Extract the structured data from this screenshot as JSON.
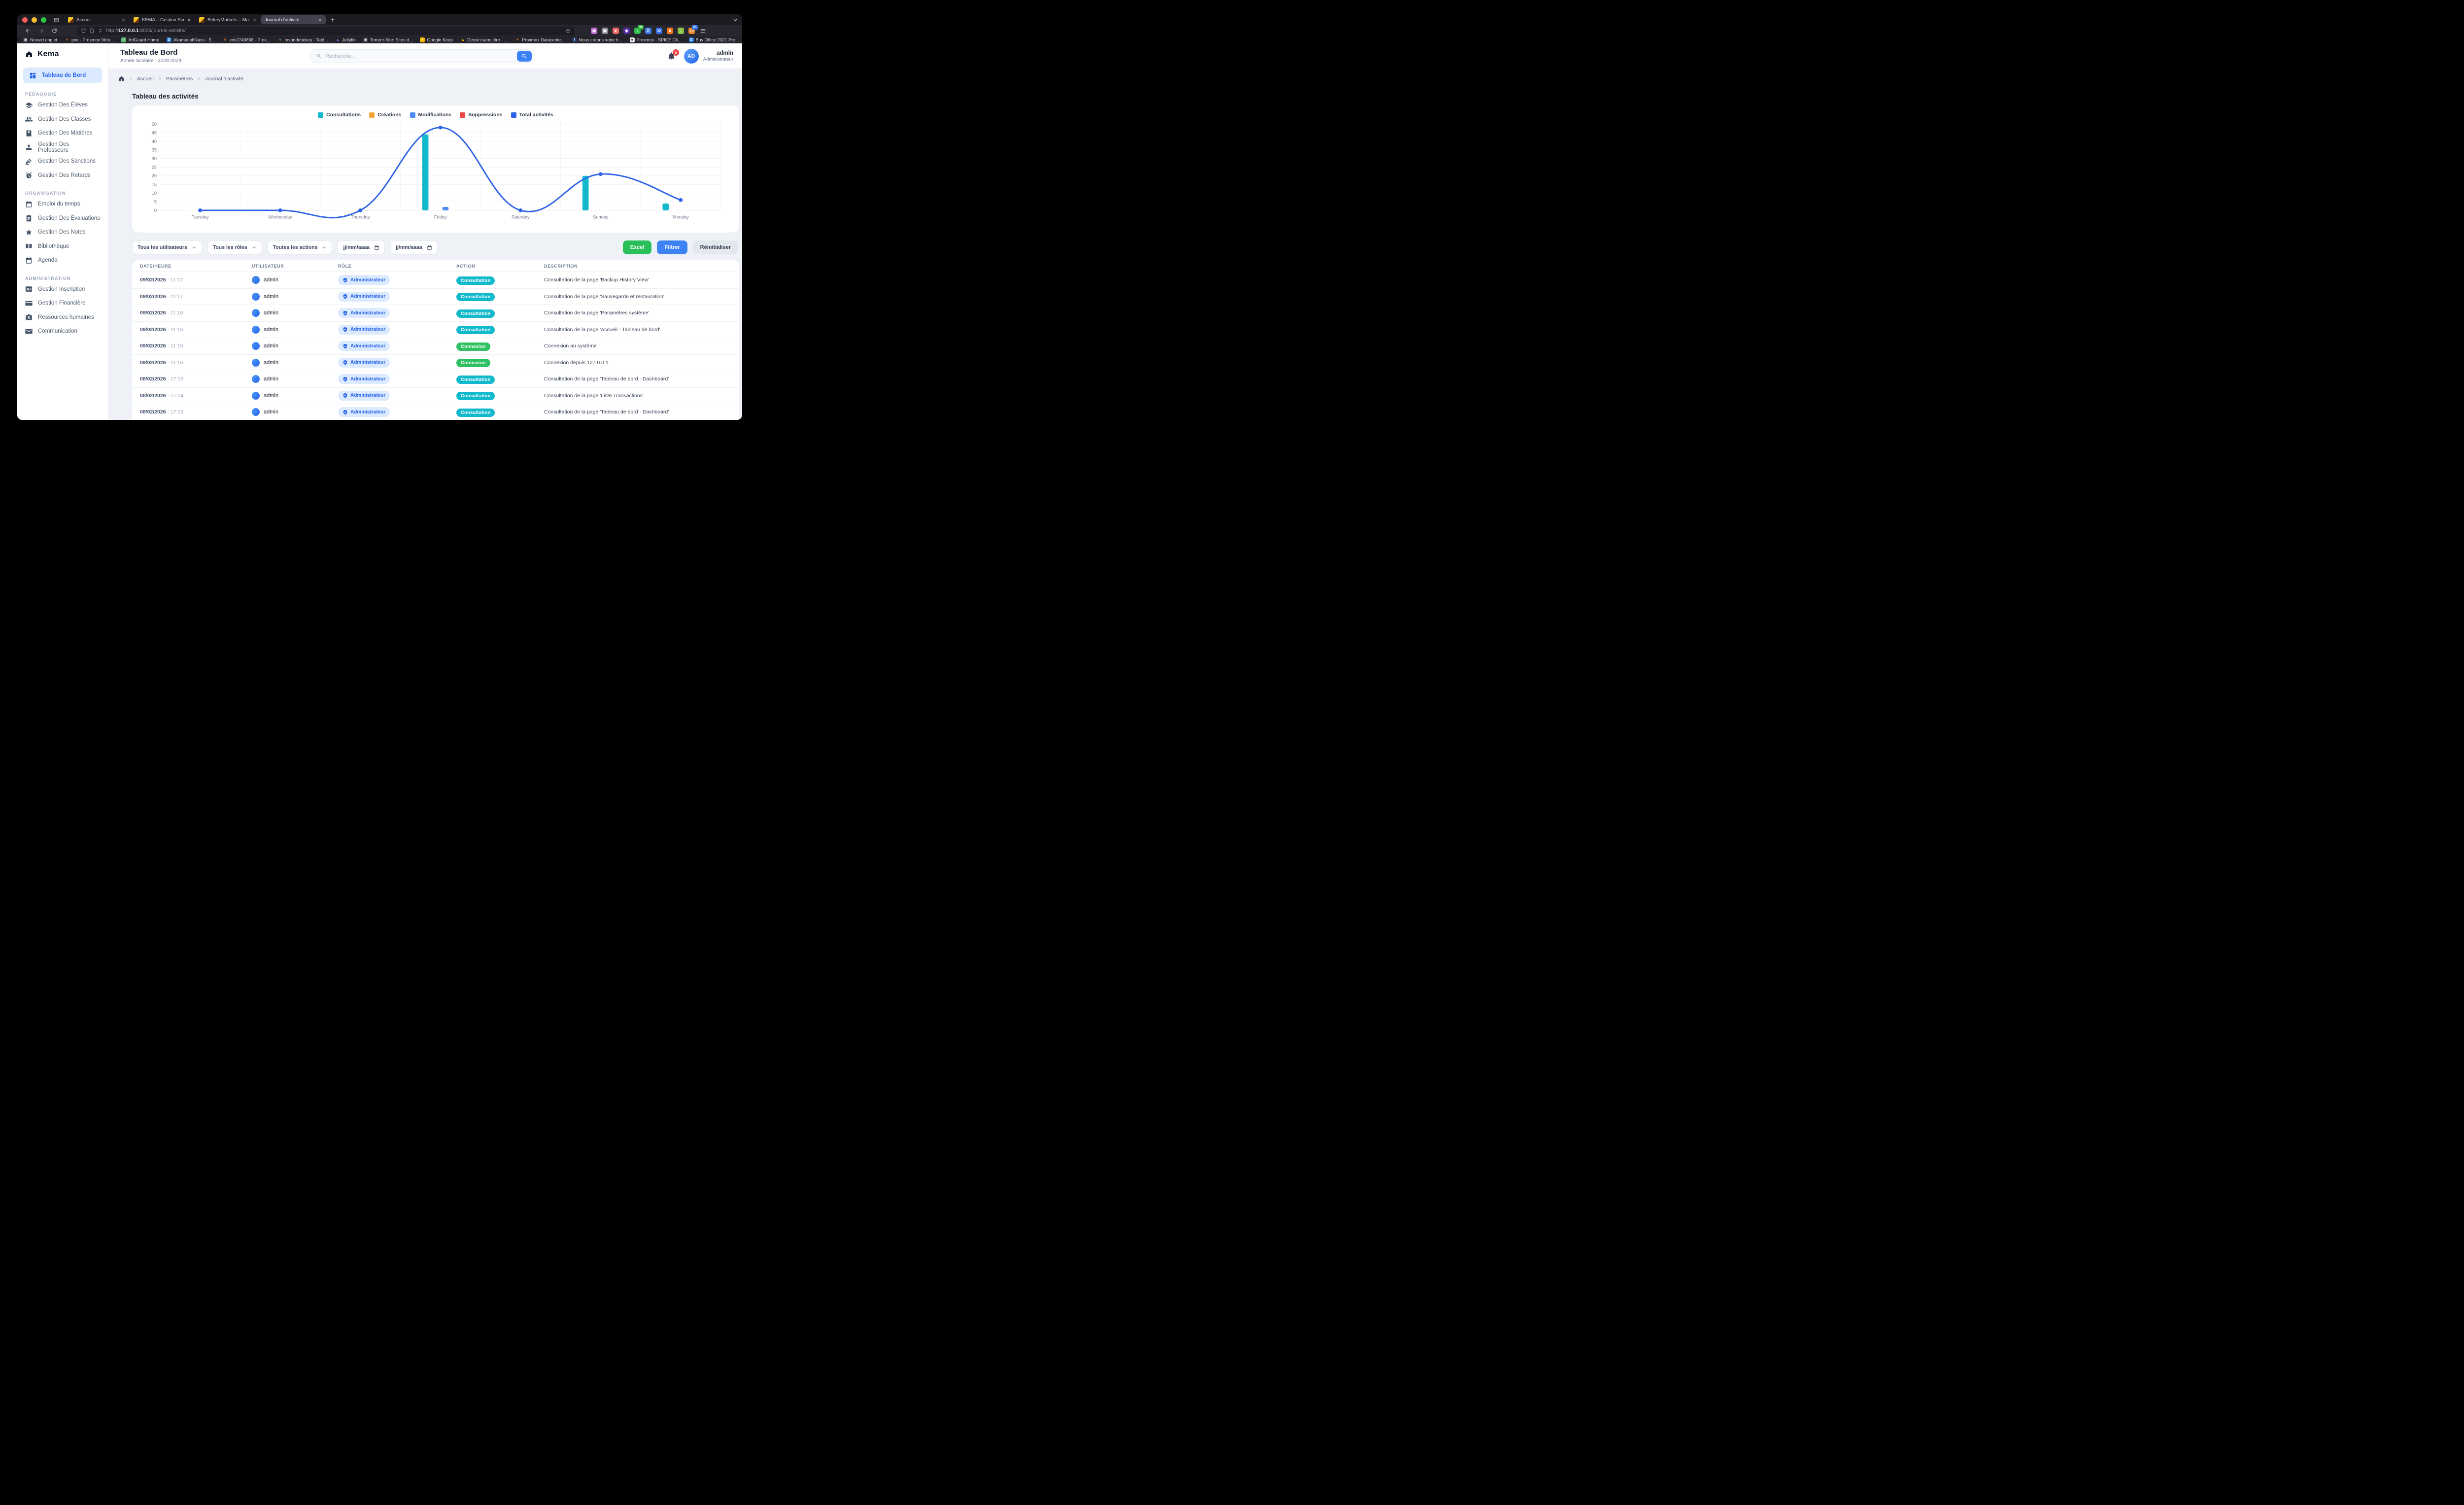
{
  "colors": {
    "accent_blue": "#3e83f6",
    "deep_blue": "#2e63e6",
    "cyan": "#12b9cc",
    "orange": "#f7a43c",
    "red": "#ee4444",
    "green": "#29c05a",
    "badge_green": "#2fc162",
    "role_pill_bg": "#dbeafe",
    "role_pill_text": "#2563eb",
    "page_bg": "#eef1f6",
    "chrome_dark": "#1c1b22",
    "chrome_mid": "#28272f",
    "notification_red": "#ef4444",
    "sidebar_active_bg": "#dbeafe",
    "sidebar_active_text": "#2563eb"
  },
  "browser": {
    "tabs": [
      {
        "title": "Accueil",
        "favicon": "kema",
        "state": ""
      },
      {
        "title": "KEMA – Gestion Scolaire Compl",
        "favicon": "kema",
        "state": ""
      },
      {
        "title": "BekeyMarkets – Marketplace E-c",
        "favicon": "kema",
        "state": ""
      },
      {
        "title": "Journal d'activité",
        "favicon": "none",
        "state": "active"
      }
    ],
    "url": {
      "scheme": "http://",
      "host": "127.0.0.1",
      "rest": ":8000/journal-activite/"
    },
    "bookmarks_overflow_glyph": "»",
    "bookmarks": [
      {
        "label": "Nouvel onglet",
        "glyph": "◉",
        "color": "#3b3a45",
        "glyph_color": "#e8e8ee"
      },
      {
        "label": "pve - Proxmox Virtu...",
        "glyph": "×",
        "color": "transparent",
        "glyph_color": "#ee7f1d"
      },
      {
        "label": "AdGuard Home",
        "glyph": "✓",
        "color": "#5cb66e",
        "glyph_color": "#ffffff"
      },
      {
        "label": "AkamasoftNass - S...",
        "glyph": "D",
        "color": "#1977d3",
        "glyph_color": "#ffffff"
      },
      {
        "label": "vmi2740868 - Prox...",
        "glyph": "×",
        "color": "transparent",
        "glyph_color": "#ee7f1d"
      },
      {
        "label": "mvondobekey - Tabl...",
        "glyph": "●",
        "color": "transparent",
        "glyph_color": "#3aa655"
      },
      {
        "label": "Jellyfin",
        "glyph": "▲",
        "color": "transparent",
        "glyph_color": "#8b5cf6"
      },
      {
        "label": "Torrent-Site: Sites d...",
        "glyph": "◉",
        "color": "#3b3a45",
        "glyph_color": "#e8e8ee"
      },
      {
        "label": "Google Keep",
        "glyph": "•",
        "color": "#f5b700",
        "glyph_color": "#ffffff"
      },
      {
        "label": "Dessin sans titre - ...",
        "glyph": "▲",
        "color": "transparent",
        "glyph_color": "#f5b700"
      },
      {
        "label": "Proxmox Datacente...",
        "glyph": "×",
        "color": "transparent",
        "glyph_color": "#ee7f1d"
      },
      {
        "label": "Nous créons votre b...",
        "glyph": "\\",
        "color": "#1e3a6b",
        "glyph_color": "#ffffff"
      },
      {
        "label": "Proxmox - SPICE Cli...",
        "glyph": "●",
        "color": "#e9e9ee",
        "glyph_color": "#3a3944"
      },
      {
        "label": "Buy Office 2021 Pro...",
        "glyph": "G",
        "color": "#1a73e8",
        "glyph_color": "#ffffff"
      },
      {
        "label": "Torrent Search Engi...",
        "glyph": "×",
        "color": "transparent",
        "glyph_color": "#e2342b"
      },
      {
        "label": "kalvincalimag/djang...",
        "glyph": "●",
        "color": "#e9e9ee",
        "glyph_color": "#24292f"
      },
      {
        "label": "AbdelrahmanElsaei...",
        "glyph": "●",
        "color": "transparent",
        "glyph_color": "#6e7681"
      },
      {
        "label": "Benji918/Personal_f...",
        "glyph": "●",
        "color": "transparent",
        "glyph_color": "#6e7681"
      }
    ],
    "extensions": [
      {
        "name": "account-globe",
        "glyph": "◉",
        "color": "#c06bd4"
      },
      {
        "name": "puzzle-extensions",
        "glyph": "▣",
        "color": "#8a8a94"
      },
      {
        "name": "adguard-drop",
        "glyph": "●",
        "color": "#f06a6a"
      },
      {
        "name": "purple-diamond",
        "glyph": "◆",
        "color": "#5a2ea6"
      },
      {
        "name": "video-downloader",
        "glyph": "↓",
        "color": "#2fbf4f",
        "badge": "36",
        "badge_color": "#23b33a"
      },
      {
        "name": "idm-integration",
        "glyph": "Σ",
        "color": "#3f7de0"
      },
      {
        "name": "blue-chevrons",
        "glyph": "≫",
        "color": "#2f6fed"
      },
      {
        "name": "orange-face",
        "glyph": "☻",
        "color": "#f97316"
      },
      {
        "name": "free-download-manager",
        "glyph": "↓",
        "color": "#8bc34a"
      },
      {
        "name": "screenshot-monitor",
        "glyph": "▭",
        "color": "#e8882f",
        "badge": "21",
        "badge_color": "#2f6fed"
      }
    ]
  },
  "sidebar": {
    "brand": "Kema",
    "dashboard": {
      "label": "Tableau de Bord"
    },
    "sections": [
      {
        "label": "PÉDAGOGIE",
        "items": [
          {
            "icon": "grad-cap",
            "label": "Gestion Des Élèves"
          },
          {
            "icon": "users",
            "label": "Gestion Des Classes"
          },
          {
            "icon": "book",
            "label": "Gestion Des Matières"
          },
          {
            "icon": "person",
            "label": "Gestion Des Professeurs"
          },
          {
            "icon": "gavel",
            "label": "Gestion Des Sanctions"
          },
          {
            "icon": "alarm-clock",
            "label": "Gestion Des Retards"
          }
        ]
      },
      {
        "label": "ORGANISATION",
        "items": [
          {
            "icon": "calendar",
            "label": "Emploi du temps"
          },
          {
            "icon": "clipboard",
            "label": "Gestion Des Évaluations"
          },
          {
            "icon": "star",
            "label": "Gestion Des Notes"
          },
          {
            "icon": "open-book",
            "label": "Bibliothèque"
          },
          {
            "icon": "calendar-dot",
            "label": "Agenda"
          }
        ]
      },
      {
        "label": "ADMINISTRATION",
        "items": [
          {
            "icon": "id-card",
            "label": "Gestion Inscription"
          },
          {
            "icon": "credit-card",
            "label": "Gestion Financière"
          },
          {
            "icon": "badge-id",
            "label": "Ressources humaines"
          },
          {
            "icon": "envelope",
            "label": "Communication"
          }
        ]
      }
    ]
  },
  "header": {
    "title": "Tableau de Bord",
    "subtitle": "Année Scolaire : 2028-2029",
    "search_placeholder": "Recherche...",
    "notification_count": "5",
    "user": {
      "initials": "AD",
      "name": "admin",
      "role": "Administrateur"
    }
  },
  "breadcrumb": {
    "items": [
      {
        "label": "Accueil"
      },
      {
        "label": "Paramètres"
      },
      {
        "label": "Journal d'activité"
      }
    ]
  },
  "chart_data": {
    "type": "bar+line",
    "title": "Tableau des activités",
    "categories": [
      "Tuesday",
      "Wednesday",
      "Thursday",
      "Friday",
      "Saturday",
      "Sunday",
      "Monday"
    ],
    "series": [
      {
        "name": "Consultations",
        "type": "bar",
        "color": "#12b9cc",
        "values": [
          0,
          0,
          0,
          44,
          0,
          20,
          4
        ]
      },
      {
        "name": "Créations",
        "type": "bar",
        "color": "#f7a43c",
        "values": [
          0,
          0,
          0,
          0,
          0,
          0,
          0
        ]
      },
      {
        "name": "Modifications",
        "type": "bar",
        "color": "#4e8df8",
        "values": [
          0,
          0,
          0,
          2,
          0,
          0,
          0
        ]
      },
      {
        "name": "Suppressions",
        "type": "bar",
        "color": "#ee4444",
        "values": [
          0,
          0,
          0,
          0,
          0,
          0,
          0
        ]
      },
      {
        "name": "Total activités",
        "type": "line",
        "color": "#2e63e6",
        "values": [
          0,
          0,
          0,
          48,
          0,
          21,
          6
        ]
      }
    ],
    "xlabel": "",
    "ylabel": "",
    "ylim": [
      0,
      50
    ],
    "ytick_step": 5,
    "grid": true,
    "legend_position": "top"
  },
  "filters": {
    "users": "Tous les utilisateurs",
    "roles": "Tous les rôles",
    "actions": "Toutes les actions",
    "date_from_placeholder": "jj/mm/aaaa",
    "date_to_placeholder": "jj/mm/aaaa",
    "excel_label": "Excel",
    "filter_label": "Filtrer",
    "reset_label": "Réinitialiser"
  },
  "table": {
    "date_separator": " - ",
    "headers": [
      "DATE/HEURE",
      "UTILISATEUR",
      "RÔLE",
      "ACTION",
      "DESCRIPTION"
    ],
    "rows": [
      {
        "date": "09/02/2026",
        "time": "11:17",
        "user": "admin",
        "role": "Administrateur",
        "action_label": "Consultation",
        "action_type": "consultation",
        "description": "Consultation de la page 'Backup History View'"
      },
      {
        "date": "09/02/2026",
        "time": "11:17",
        "user": "admin",
        "role": "Administrateur",
        "action_label": "Consultation",
        "action_type": "consultation",
        "description": "Consultation de la page 'Sauvegarde et restauration'"
      },
      {
        "date": "09/02/2026",
        "time": "11:16",
        "user": "admin",
        "role": "Administrateur",
        "action_label": "Consultation",
        "action_type": "consultation",
        "description": "Consultation de la page 'Paramètres système'"
      },
      {
        "date": "09/02/2026",
        "time": "11:16",
        "user": "admin",
        "role": "Administrateur",
        "action_label": "Consultation",
        "action_type": "consultation",
        "description": "Consultation de la page 'Accueil - Tableau de bord'"
      },
      {
        "date": "09/02/2026",
        "time": "11:16",
        "user": "admin",
        "role": "Administrateur",
        "action_label": "Connexion",
        "action_type": "connexion",
        "description": "Connexion au système"
      },
      {
        "date": "09/02/2026",
        "time": "11:16",
        "user": "admin",
        "role": "Administrateur",
        "action_label": "Connexion",
        "action_type": "connexion",
        "description": "Connexion depuis 127.0.0.1"
      },
      {
        "date": "08/02/2026",
        "time": "17:06",
        "user": "admin",
        "role": "Administrateur",
        "action_label": "Consultation",
        "action_type": "consultation",
        "description": "Consultation de la page 'Tableau de bord - Dashboard'"
      },
      {
        "date": "08/02/2026",
        "time": "17:04",
        "user": "admin",
        "role": "Administrateur",
        "action_label": "Consultation",
        "action_type": "consultation",
        "description": "Consultation de la page 'Liste Transactions'"
      },
      {
        "date": "08/02/2026",
        "time": "17:03",
        "user": "admin",
        "role": "Administrateur",
        "action_label": "Consultation",
        "action_type": "consultation",
        "description": "Consultation de la page 'Tableau de bord - Dashboard'"
      }
    ]
  }
}
